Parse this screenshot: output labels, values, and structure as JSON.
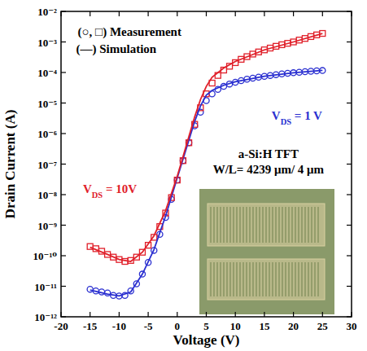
{
  "chart_data": {
    "type": "line",
    "x_label": "Voltage (V)",
    "y_label": "Drain Current (A)",
    "log": "y",
    "xlim": [
      -20,
      30
    ],
    "xticks": [
      -20,
      -15,
      -10,
      -5,
      0,
      5,
      10,
      15,
      20,
      25,
      30
    ],
    "ylim": [
      1e-12,
      0.01
    ],
    "yticks": [
      {
        "value": 1e-12,
        "label": "10⁻¹²"
      },
      {
        "value": 1e-11,
        "label": "10⁻¹¹"
      },
      {
        "value": 1e-10,
        "label": "10⁻¹⁰"
      },
      {
        "value": 1e-09,
        "label": "10⁻⁹"
      },
      {
        "value": 1e-08,
        "label": "10⁻⁸"
      },
      {
        "value": 1e-07,
        "label": "10⁻⁷"
      },
      {
        "value": 1e-06,
        "label": "10⁻⁶"
      },
      {
        "value": 1e-05,
        "label": "10⁻⁵"
      },
      {
        "value": 0.0001,
        "label": "10⁻⁴"
      },
      {
        "value": 0.001,
        "label": "10⁻³"
      },
      {
        "value": 0.01,
        "label": "10⁻²"
      }
    ],
    "series": [
      {
        "type": "scatter",
        "marker": "circle",
        "color": "#2a2fd0",
        "x": [
          -15,
          -14,
          -13,
          -12,
          -11,
          -10,
          -9,
          -8,
          -7,
          -6,
          -5,
          -4,
          -3,
          -2,
          -1,
          0,
          1,
          2,
          3,
          4,
          5,
          6,
          7,
          8,
          9,
          10,
          11,
          12,
          13,
          14,
          15,
          16,
          17,
          18,
          19,
          20,
          21,
          22,
          23,
          24,
          25
        ],
        "values": [
          8e-12,
          7e-12,
          6.5e-12,
          6e-12,
          5e-12,
          4.8e-12,
          5e-12,
          7e-12,
          1.2e-11,
          2.5e-11,
          6e-11,
          1.5e-10,
          5e-10,
          1.8e-09,
          7e-09,
          3e-08,
          1.3e-07,
          5e-07,
          1.8e-06,
          5e-06,
          1.2e-05,
          2e-05,
          2.8e-05,
          3.5e-05,
          4.2e-05,
          4.8e-05,
          5.4e-05,
          6e-05,
          6.5e-05,
          7e-05,
          7.5e-05,
          8e-05,
          8.5e-05,
          9e-05,
          9.4e-05,
          9.8e-05,
          0.000102,
          0.000106,
          0.00011,
          0.000113,
          0.000116
        ]
      },
      {
        "type": "scatter",
        "marker": "square",
        "color": "#e0202a",
        "x": [
          -15,
          -14,
          -13,
          -12,
          -11,
          -10,
          -9,
          -8,
          -7,
          -6,
          -5,
          -4,
          -3,
          -2,
          -1,
          0,
          1,
          2,
          3,
          4,
          5,
          6,
          7,
          8,
          9,
          10,
          11,
          12,
          13,
          14,
          15,
          16,
          17,
          18,
          19,
          20,
          21,
          22,
          23,
          24,
          25
        ],
        "values": [
          2e-10,
          1.7e-10,
          1.4e-10,
          1.1e-10,
          9e-11,
          7.5e-11,
          6.5e-11,
          7e-11,
          9e-11,
          1.3e-10,
          2.2e-10,
          4e-10,
          9e-10,
          2.5e-09,
          8e-09,
          3e-08,
          1.3e-07,
          5e-07,
          2e-06,
          7e-06,
          2e-05,
          4.5e-05,
          8e-05,
          0.00012,
          0.00016,
          0.00021,
          0.00027,
          0.00033,
          0.0004,
          0.00047,
          0.00055,
          0.00063,
          0.00072,
          0.00081,
          0.0009,
          0.001,
          0.00115,
          0.0013,
          0.0015,
          0.0017,
          0.0019
        ]
      },
      {
        "type": "line",
        "line_style": "solid",
        "color": "#2a2fd0",
        "x": [
          -15,
          -12,
          -10,
          -8,
          -6,
          -4,
          -2,
          0,
          2,
          3,
          4,
          5,
          6,
          8,
          10,
          15,
          20,
          25
        ],
        "values": [
          7.5e-12,
          5.5e-12,
          4.8e-12,
          6.5e-12,
          2.5e-11,
          1.6e-10,
          2e-09,
          3.5e-08,
          6e-07,
          2.5e-06,
          8e-06,
          1.8e-05,
          2.6e-05,
          3.8e-05,
          5e-05,
          7.5e-05,
          9.8e-05,
          0.000118
        ]
      },
      {
        "type": "line",
        "line_style": "solid",
        "color": "#e0202a",
        "x": [
          -15,
          -12,
          -10,
          -8,
          -6,
          -4,
          -2,
          0,
          2,
          3,
          4,
          5,
          6,
          8,
          10,
          15,
          20,
          25
        ],
        "values": [
          1.9e-10,
          1.1e-10,
          7.5e-11,
          6.5e-11,
          1.3e-10,
          4.5e-10,
          3e-09,
          4e-08,
          8e-07,
          3.5e-06,
          1.3e-05,
          3.5e-05,
          7e-05,
          0.00014,
          0.00023,
          0.00055,
          0.001,
          0.0019
        ]
      }
    ],
    "annotations": [
      {
        "text": "(○, □) Measurement",
        "x": -8.2,
        "y": 0.0016,
        "color": "#000000"
      },
      {
        "text": "(—) Simulation",
        "x": -10.5,
        "y": 0.00043,
        "color": "#000000"
      },
      {
        "text": "VDS = 1 V",
        "x": 20.6,
        "y": 2.9e-06,
        "color": "#2a2fd0"
      },
      {
        "text": "VDS = 10V",
        "x": -11.6,
        "y": 1.1e-08,
        "color": "#e0202a"
      },
      {
        "text": "a-Si:H TFT",
        "x": 15.7,
        "y": 1.6e-07,
        "color": "#000000"
      },
      {
        "text": "W/L= 4239 μm/ 4 μm",
        "x": 15.7,
        "y": 5e-08,
        "color": "#000000"
      }
    ]
  }
}
